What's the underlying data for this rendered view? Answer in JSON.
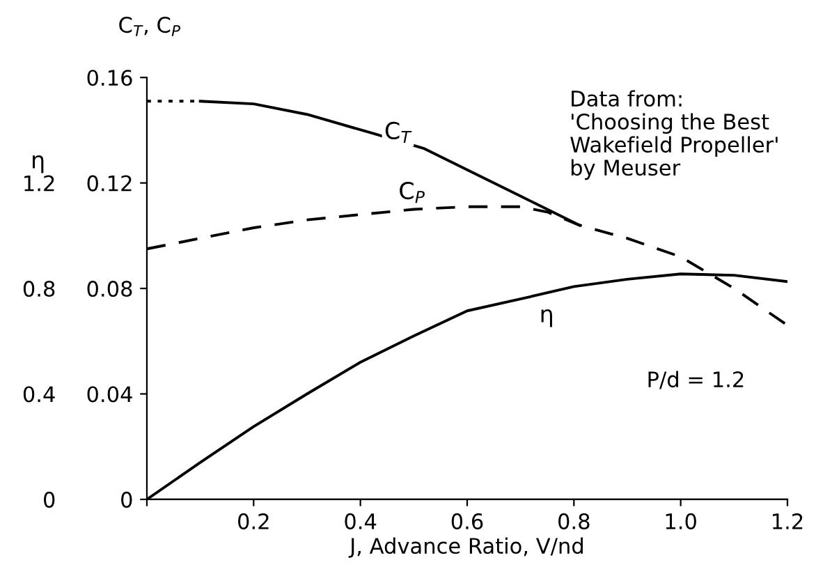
{
  "chart_data": {
    "type": "line",
    "xlabel": "J, Advance Ratio, V/nd",
    "ylabel": "C$_{T}$, C$_{P}$",
    "y2label": "η",
    "xlim": [
      0,
      1.2
    ],
    "xticks": [
      {
        "value": 0,
        "label": null
      },
      0.2,
      0.4,
      0.6,
      0.8,
      {
        "value": 1.0,
        "label": "1.0"
      },
      1.2
    ],
    "ylim": [
      0,
      0.16
    ],
    "yticks": [
      0,
      0.04,
      0.08,
      0.12,
      0.16
    ],
    "y2lim": [
      0,
      1.6
    ],
    "y2ticks": [
      0,
      0.4,
      0.8,
      1.2
    ],
    "grid": false,
    "legend": false,
    "marker": "none",
    "series": [
      {
        "name": "C$_{T}$",
        "color": "#000000",
        "line_style": "solid",
        "x": [
          0.1,
          0.2,
          0.3,
          0.42,
          0.52,
          0.6,
          0.7,
          0.81
        ],
        "values": [
          0.151,
          0.15,
          0.146,
          0.139,
          0.133,
          0.125,
          0.115,
          0.104
        ]
      },
      {
        "color": "#000000",
        "line_style": "dotted",
        "x": [
          0,
          0.1
        ],
        "values": [
          0.151,
          0.151
        ]
      },
      {
        "name": "C$_{P}$",
        "color": "#000000",
        "line_style": "dashed",
        "x": [
          0,
          0.1,
          0.2,
          0.3,
          0.4,
          0.5,
          0.6,
          0.7,
          0.75,
          0.81,
          0.9,
          1.0,
          1.1,
          1.2
        ],
        "values": [
          0.095,
          0.099,
          0.103,
          0.106,
          0.108,
          0.11,
          0.111,
          0.111,
          0.109,
          0.104,
          0.099,
          0.092,
          0.08,
          0.066
        ]
      },
      {
        "name": "η",
        "color": "#000000",
        "line_style": "solid",
        "axis": "y2",
        "x": [
          0,
          0.1,
          0.2,
          0.3,
          0.4,
          0.5,
          0.6,
          0.7,
          0.8,
          0.9,
          1.0,
          1.1,
          1.2
        ],
        "values": [
          0,
          0.14,
          0.276,
          0.4,
          0.52,
          0.62,
          0.715,
          0.76,
          0.807,
          0.835,
          0.855,
          0.85,
          0.826
        ]
      }
    ],
    "annotations": [
      "Data from:\n'Choosing the Best\nWakefield Propeller'\nby Meuser",
      "P/d = 1.2"
    ]
  }
}
